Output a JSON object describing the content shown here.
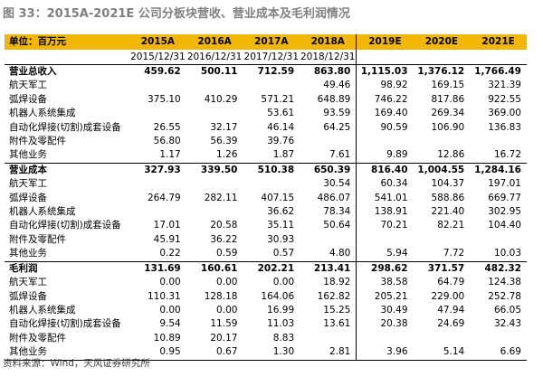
{
  "title": "图 33：2015A-2021E 公司分板块营收、营业成本及毛利润情况",
  "header": {
    "unit_label": "单位：百万元",
    "years": [
      "2015A",
      "2016A",
      "2017A",
      "2018A",
      "2019E",
      "2020E",
      "2021E"
    ],
    "dates": [
      "2015/12/31",
      "2016/12/31",
      "2017/12/31",
      "2018/12/31",
      "",
      "",
      ""
    ]
  },
  "header_color": "#f2b705",
  "rows": [
    {
      "label": "营业总收入",
      "values": [
        "459.62",
        "500.11",
        "712.59",
        "863.80",
        "1,115.03",
        "1,376.12",
        "1,766.49"
      ],
      "bold": true
    },
    {
      "label": "航天军工",
      "values": [
        "",
        "",
        "",
        "49.46",
        "98.92",
        "169.15",
        "321.39"
      ]
    },
    {
      "label": "弧焊设备",
      "values": [
        "375.10",
        "410.29",
        "571.21",
        "648.89",
        "746.22",
        "817.86",
        "922.55"
      ]
    },
    {
      "label": "机器人系统集成",
      "values": [
        "",
        "",
        "53.61",
        "93.59",
        "169.40",
        "269.34",
        "369.00"
      ]
    },
    {
      "label": "自动化焊接(切割)成套设备",
      "values": [
        "26.55",
        "32.17",
        "46.14",
        "64.25",
        "90.59",
        "106.90",
        "136.83"
      ]
    },
    {
      "label": "附件及零配件",
      "values": [
        "56.80",
        "56.39",
        "39.76",
        "",
        "",
        "",
        ""
      ]
    },
    {
      "label": "其他业务",
      "values": [
        "1.17",
        "1.26",
        "1.87",
        "7.61",
        "9.89",
        "12.86",
        "16.72"
      ]
    },
    {
      "label": "营业成本",
      "values": [
        "327.93",
        "339.50",
        "510.38",
        "650.39",
        "816.40",
        "1,004.55",
        "1,284.16"
      ],
      "bold": true
    },
    {
      "label": "航天军工",
      "values": [
        "",
        "",
        "",
        "30.54",
        "60.34",
        "104.37",
        "197.01"
      ]
    },
    {
      "label": "弧焊设备",
      "values": [
        "264.79",
        "282.11",
        "407.15",
        "486.07",
        "541.01",
        "588.86",
        "669.77"
      ]
    },
    {
      "label": "机器人系统集成",
      "values": [
        "",
        "",
        "36.62",
        "78.34",
        "138.91",
        "221.40",
        "302.95"
      ]
    },
    {
      "label": "自动化焊接(切割)成套设备",
      "values": [
        "17.01",
        "20.58",
        "35.11",
        "50.64",
        "70.21",
        "82.21",
        "104.40"
      ]
    },
    {
      "label": "附件及零配件",
      "values": [
        "45.91",
        "36.22",
        "30.93",
        "",
        "",
        "",
        ""
      ]
    },
    {
      "label": "其他业务",
      "values": [
        "0.22",
        "0.59",
        "0.57",
        "4.80",
        "5.94",
        "7.72",
        "10.03"
      ]
    },
    {
      "label": "毛利润",
      "values": [
        "131.69",
        "160.61",
        "202.21",
        "213.41",
        "298.62",
        "371.57",
        "482.32"
      ],
      "bold": true
    },
    {
      "label": "航天军工",
      "values": [
        "0.00",
        "0.00",
        "0.00",
        "18.92",
        "38.58",
        "64.79",
        "124.38"
      ]
    },
    {
      "label": "弧焊设备",
      "values": [
        "110.31",
        "128.18",
        "164.06",
        "162.82",
        "205.21",
        "229.00",
        "252.78"
      ]
    },
    {
      "label": "机器人系统集成",
      "values": [
        "0.00",
        "0.00",
        "16.99",
        "15.25",
        "30.49",
        "47.94",
        "66.05"
      ]
    },
    {
      "label": "自动化焊接(切割)成套设备",
      "values": [
        "9.54",
        "11.59",
        "11.03",
        "13.61",
        "20.38",
        "24.69",
        "32.43"
      ]
    },
    {
      "label": "附件及零配件",
      "values": [
        "10.89",
        "20.17",
        "8.83",
        "",
        "",
        "",
        ""
      ]
    },
    {
      "label": "其他业务",
      "values": [
        "0.95",
        "0.67",
        "1.30",
        "2.81",
        "3.96",
        "5.14",
        "6.69"
      ]
    }
  ],
  "source": "资料来源：Wind，天风证券研究所"
}
